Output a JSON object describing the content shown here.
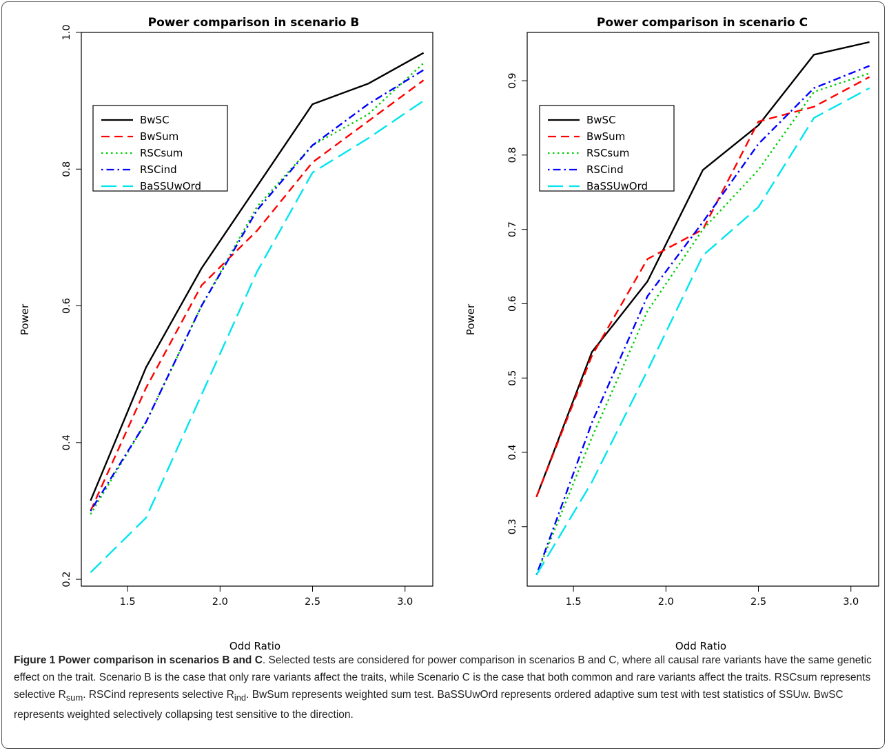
{
  "chart_data": [
    {
      "type": "line",
      "title": "Power comparison in scenario B",
      "xlabel": "Odd Ratio",
      "ylabel": "Power",
      "xlim": [
        1.25,
        3.15
      ],
      "ylim": [
        0.19,
        1.0
      ],
      "xticks": [
        "1.5",
        "2.0",
        "2.5",
        "3.0"
      ],
      "yticks": [
        "0.2",
        "0.4",
        "0.6",
        "0.8",
        "1.0"
      ],
      "legend_position": "top-left",
      "series": [
        {
          "name": "BwSC",
          "color": "#000000",
          "dash": "solid",
          "x": [
            1.3,
            1.6,
            1.9,
            2.2,
            2.5,
            2.8,
            3.1
          ],
          "y": [
            0.315,
            0.51,
            0.655,
            0.775,
            0.895,
            0.925,
            0.97
          ]
        },
        {
          "name": "BwSum",
          "color": "#ff0000",
          "dash": "dashed",
          "x": [
            1.3,
            1.6,
            1.9,
            2.2,
            2.5,
            2.8,
            3.1
          ],
          "y": [
            0.3,
            0.48,
            0.63,
            0.71,
            0.81,
            0.87,
            0.93
          ]
        },
        {
          "name": "RSCsum",
          "color": "#00cd00",
          "dash": "dotted",
          "x": [
            1.3,
            1.6,
            1.9,
            2.2,
            2.5,
            2.8,
            3.1
          ],
          "y": [
            0.295,
            0.43,
            0.6,
            0.745,
            0.835,
            0.88,
            0.955
          ]
        },
        {
          "name": "RSCind",
          "color": "#0000ff",
          "dash": "dotdash",
          "x": [
            1.3,
            1.6,
            1.9,
            2.2,
            2.5,
            2.8,
            3.1
          ],
          "y": [
            0.3,
            0.43,
            0.6,
            0.74,
            0.835,
            0.895,
            0.945
          ]
        },
        {
          "name": "BaSSUwOrd",
          "color": "#00e5ee",
          "dash": "longdash",
          "x": [
            1.3,
            1.6,
            1.9,
            2.2,
            2.5,
            2.8,
            3.1
          ],
          "y": [
            0.21,
            0.29,
            0.47,
            0.65,
            0.795,
            0.845,
            0.9
          ]
        }
      ]
    },
    {
      "type": "line",
      "title": "Power comparison in scenario C",
      "xlabel": "Odd Ratio",
      "ylabel": "Power",
      "xlim": [
        1.25,
        3.15
      ],
      "ylim": [
        0.22,
        0.965
      ],
      "xticks": [
        "1.5",
        "2.0",
        "2.5",
        "3.0"
      ],
      "yticks": [
        "0.3",
        "0.4",
        "0.5",
        "0.6",
        "0.7",
        "0.8",
        "0.9"
      ],
      "legend_position": "top-left",
      "series": [
        {
          "name": "BwSC",
          "color": "#000000",
          "dash": "solid",
          "x": [
            1.3,
            1.6,
            1.9,
            2.2,
            2.5,
            2.8,
            3.1
          ],
          "y": [
            0.34,
            0.535,
            0.63,
            0.78,
            0.84,
            0.935,
            0.952
          ]
        },
        {
          "name": "BwSum",
          "color": "#ff0000",
          "dash": "dashed",
          "x": [
            1.3,
            1.6,
            1.9,
            2.2,
            2.5,
            2.8,
            3.1
          ],
          "y": [
            0.34,
            0.53,
            0.66,
            0.7,
            0.845,
            0.865,
            0.905
          ]
        },
        {
          "name": "RSCsum",
          "color": "#00cd00",
          "dash": "dotted",
          "x": [
            1.3,
            1.6,
            1.9,
            2.2,
            2.5,
            2.8,
            3.1
          ],
          "y": [
            0.235,
            0.42,
            0.59,
            0.7,
            0.78,
            0.885,
            0.91
          ]
        },
        {
          "name": "RSCind",
          "color": "#0000ff",
          "dash": "dotdash",
          "x": [
            1.3,
            1.6,
            1.9,
            2.2,
            2.5,
            2.8,
            3.1
          ],
          "y": [
            0.235,
            0.44,
            0.61,
            0.71,
            0.815,
            0.89,
            0.92
          ]
        },
        {
          "name": "BaSSUwOrd",
          "color": "#00e5ee",
          "dash": "longdash",
          "x": [
            1.3,
            1.6,
            1.9,
            2.2,
            2.5,
            2.8,
            3.1
          ],
          "y": [
            0.235,
            0.36,
            0.51,
            0.665,
            0.73,
            0.85,
            0.89
          ]
        }
      ]
    }
  ],
  "caption": {
    "label": "Figure 1 Power comparison in scenarios B and C",
    "text_1": ". Selected tests are considered for power comparison in scenarios B and C, where all causal rare variants have the same genetic effect on the trait. Scenario B is the case that only rare variants affect the traits, while Scenario C is the case that both common and rare variants affect the traits. RSCsum represents selective R",
    "sub_1": "sum",
    "text_2": ". RSCind represents selective R",
    "sub_2": "ind",
    "text_3": ". BwSum represents weighted sum test. BaSSUwOrd represents ordered adaptive sum test with test statistics of SSUw. BwSC represents weighted selectively collapsing test sensitive to the direction."
  }
}
